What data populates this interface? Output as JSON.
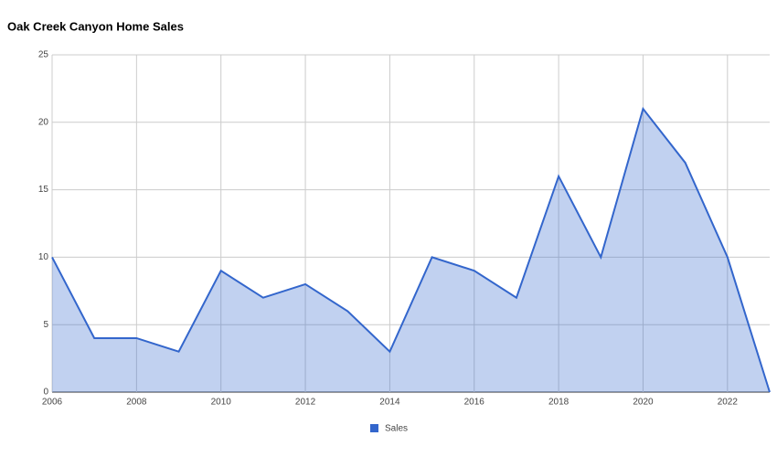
{
  "chart_data": {
    "type": "area",
    "title": "Oak Creek Canyon Home Sales",
    "x": [
      2006,
      2007,
      2008,
      2009,
      2010,
      2011,
      2012,
      2013,
      2014,
      2015,
      2016,
      2017,
      2018,
      2019,
      2020,
      2021,
      2022,
      2023
    ],
    "series": [
      {
        "name": "Sales",
        "color": "#3366cc",
        "values": [
          10,
          4,
          4,
          3,
          9,
          7,
          8,
          6,
          3,
          10,
          9,
          7,
          16,
          10,
          21,
          17,
          10,
          0
        ]
      }
    ],
    "xlim": [
      2006,
      2023
    ],
    "xticks": [
      2006,
      2008,
      2010,
      2012,
      2014,
      2016,
      2018,
      2020,
      2022
    ],
    "ylim": [
      0,
      25
    ],
    "yticks": [
      0,
      5,
      10,
      15,
      20,
      25
    ],
    "grid": true,
    "legend": "bottom"
  }
}
